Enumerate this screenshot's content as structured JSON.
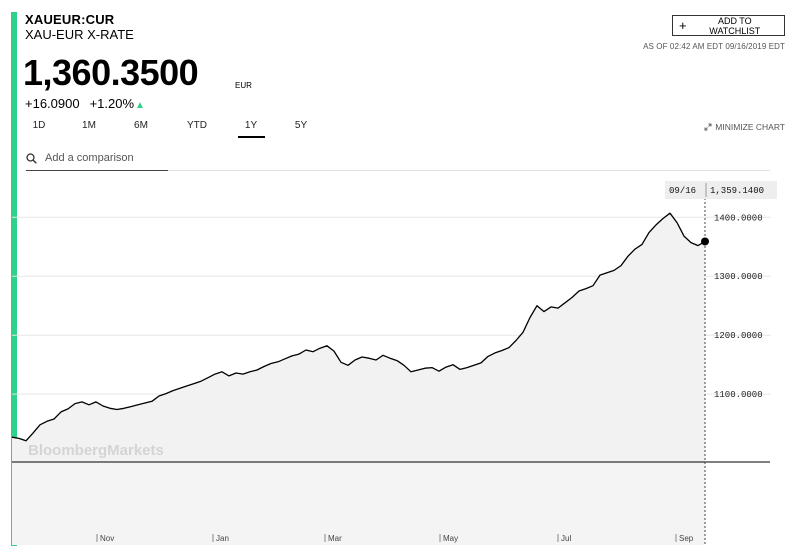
{
  "ticker": "XAUEUR:CUR",
  "subtitle": "XAU-EUR X-RATE",
  "price": "1,360.3500",
  "currency": "EUR",
  "change": "+16.0900",
  "change_pct": "+1.20%",
  "watchlist_label": "ADD TO WATCHLIST",
  "as_of": "AS OF 02:42 AM EDT 09/16/2019 EDT",
  "tabs": [
    {
      "label": "1D",
      "active": false
    },
    {
      "label": "1M",
      "active": false
    },
    {
      "label": "6M",
      "active": false
    },
    {
      "label": "YTD",
      "active": false
    },
    {
      "label": "1Y",
      "active": true
    },
    {
      "label": "5Y",
      "active": false
    }
  ],
  "minimize_label": "MINIMIZE CHART",
  "compare_placeholder": "Add a comparison",
  "watermark": "BloombergMarkets",
  "tooltip": {
    "date": "09/16",
    "value": "1,359.1400"
  },
  "colors": {
    "accent": "#2fd28b",
    "up": "#2fd28b",
    "line": "#000000",
    "area": "#f2f2f2",
    "grid": "#e6e6e6"
  },
  "chart_data": {
    "type": "area",
    "x_tick_labels": [
      "Nov",
      "Jan",
      "Mar",
      "May",
      "Jul",
      "Sep"
    ],
    "y_tick_labels": [
      "1400.0000",
      "1300.0000",
      "1200.0000",
      "1100.0000"
    ],
    "y_ticks": [
      1400,
      1300,
      1200,
      1100
    ],
    "ylim": [
      985,
      1470
    ],
    "grid": true,
    "series": [
      {
        "values": [
          1027,
          1025,
          1021,
          1034,
          1048,
          1054,
          1058,
          1070,
          1075,
          1084,
          1087,
          1082,
          1087,
          1080,
          1076,
          1074,
          1076,
          1079,
          1082,
          1085,
          1088,
          1097,
          1101,
          1106,
          1110,
          1114,
          1118,
          1122,
          1128,
          1134,
          1138,
          1131,
          1136,
          1134,
          1138,
          1141,
          1147,
          1152,
          1155,
          1160,
          1165,
          1168,
          1175,
          1172,
          1178,
          1182,
          1173,
          1154,
          1149,
          1158,
          1163,
          1161,
          1158,
          1166,
          1161,
          1157,
          1149,
          1138,
          1141,
          1144,
          1145,
          1139,
          1146,
          1150,
          1142,
          1145,
          1149,
          1153,
          1164,
          1170,
          1174,
          1179,
          1191,
          1205,
          1230,
          1250,
          1240,
          1248,
          1246,
          1255,
          1264,
          1275,
          1279,
          1284,
          1302,
          1306,
          1310,
          1318,
          1334,
          1346,
          1354,
          1374,
          1387,
          1398,
          1407,
          1391,
          1368,
          1357,
          1352,
          1359
        ]
      }
    ]
  }
}
